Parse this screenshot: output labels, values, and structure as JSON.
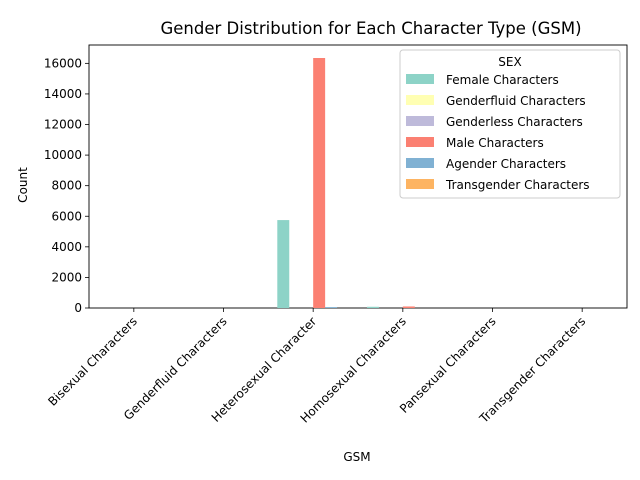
{
  "chart_data": {
    "type": "bar",
    "title": "Gender Distribution for Each Character Type (GSM)",
    "xlabel": "GSM",
    "ylabel": "Count",
    "ylim": [
      0,
      17200
    ],
    "yticks": [
      0,
      2000,
      4000,
      6000,
      8000,
      10000,
      12000,
      14000,
      16000
    ],
    "grid": false,
    "legend_title": "SEX",
    "legend_position": "upper right",
    "categories": [
      "Bisexual Characters",
      "Genderfluid Characters",
      "Heterosexual Character",
      "Homosexual Characters",
      "Pansexual Characters",
      "Transgender Characters"
    ],
    "series": [
      {
        "name": "Female Characters",
        "color": "#8dd3c7",
        "values": [
          0,
          0,
          5750,
          80,
          0,
          0
        ]
      },
      {
        "name": "Genderfluid Characters",
        "color": "#ffffb3",
        "values": [
          0,
          0,
          0,
          0,
          0,
          0
        ]
      },
      {
        "name": "Genderless Characters",
        "color": "#bebada",
        "values": [
          0,
          0,
          0,
          0,
          0,
          0
        ]
      },
      {
        "name": "Male Characters",
        "color": "#fb8072",
        "values": [
          0,
          0,
          16350,
          100,
          0,
          0
        ]
      },
      {
        "name": "Agender Characters",
        "color": "#80b1d3",
        "values": [
          0,
          0,
          60,
          0,
          0,
          0
        ]
      },
      {
        "name": "Transgender Characters",
        "color": "#fdb462",
        "values": [
          0,
          0,
          0,
          0,
          0,
          0
        ]
      }
    ]
  }
}
